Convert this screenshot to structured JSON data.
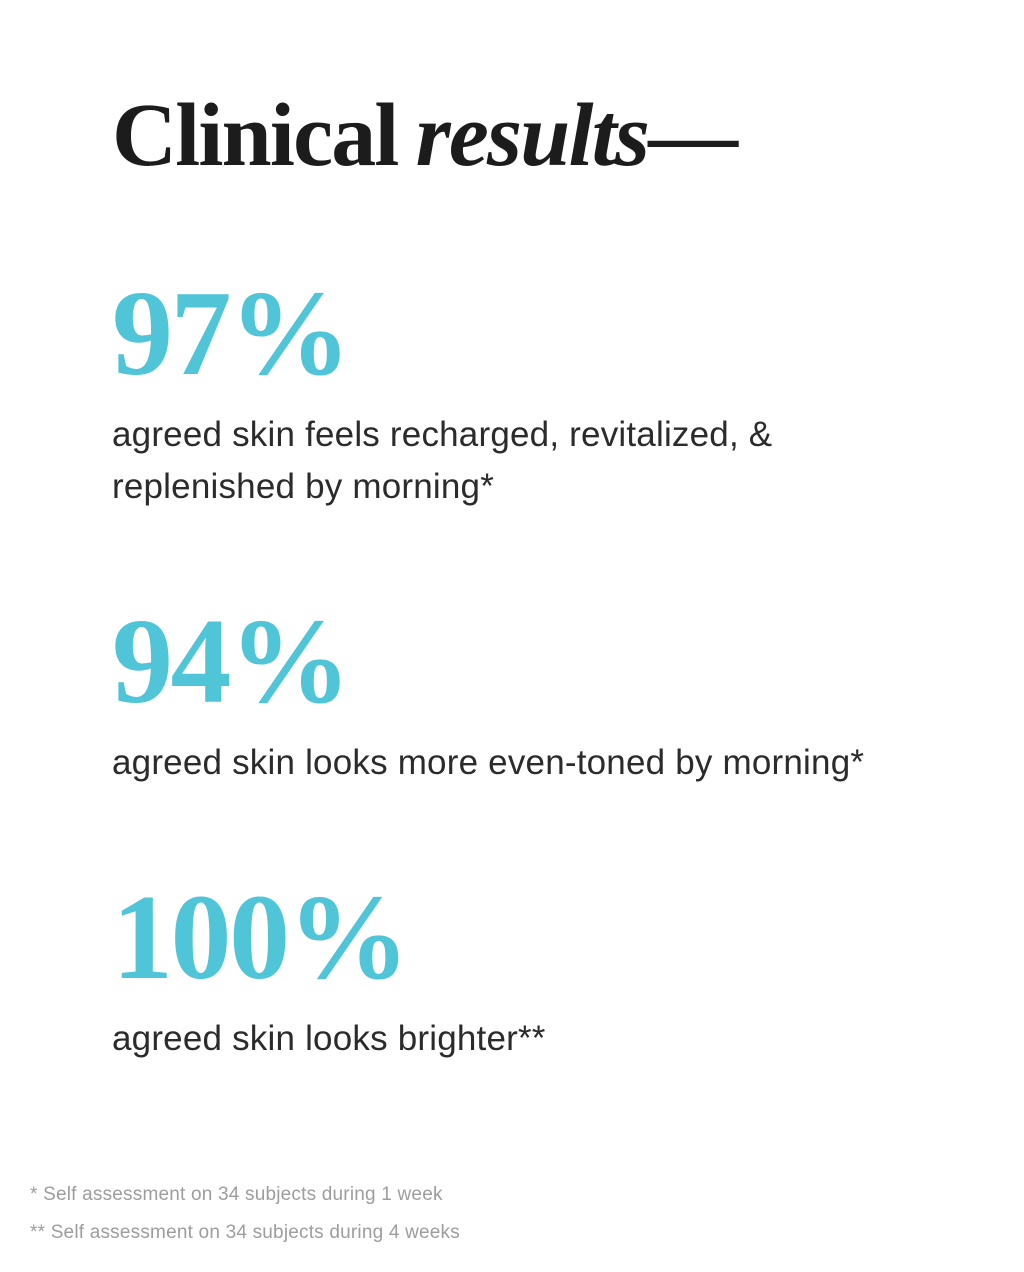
{
  "page": {
    "background_color": "#ffffff",
    "accent_color": "#50c5d8",
    "heading_color": "#1c1c1c",
    "body_text_color": "#2b2b2b",
    "footnote_color": "#9d9d9d"
  },
  "title": {
    "regular": "Clinical",
    "italic": "results",
    "dash": "—"
  },
  "stats": [
    {
      "value": "97%",
      "description": "agreed skin feels recharged, revitalized, &\nreplenished by morning",
      "marker": "*"
    },
    {
      "value": "94%",
      "description": "agreed skin looks more even-toned by morning",
      "marker": "*"
    },
    {
      "value": "100%",
      "description": "agreed skin looks brighter",
      "marker": "**"
    }
  ],
  "footnotes": [
    {
      "marker": "*",
      "text": "Self assessment on 34 subjects during 1 week"
    },
    {
      "marker": "**",
      "text": "Self assessment on 34 subjects during 4 weeks"
    }
  ]
}
